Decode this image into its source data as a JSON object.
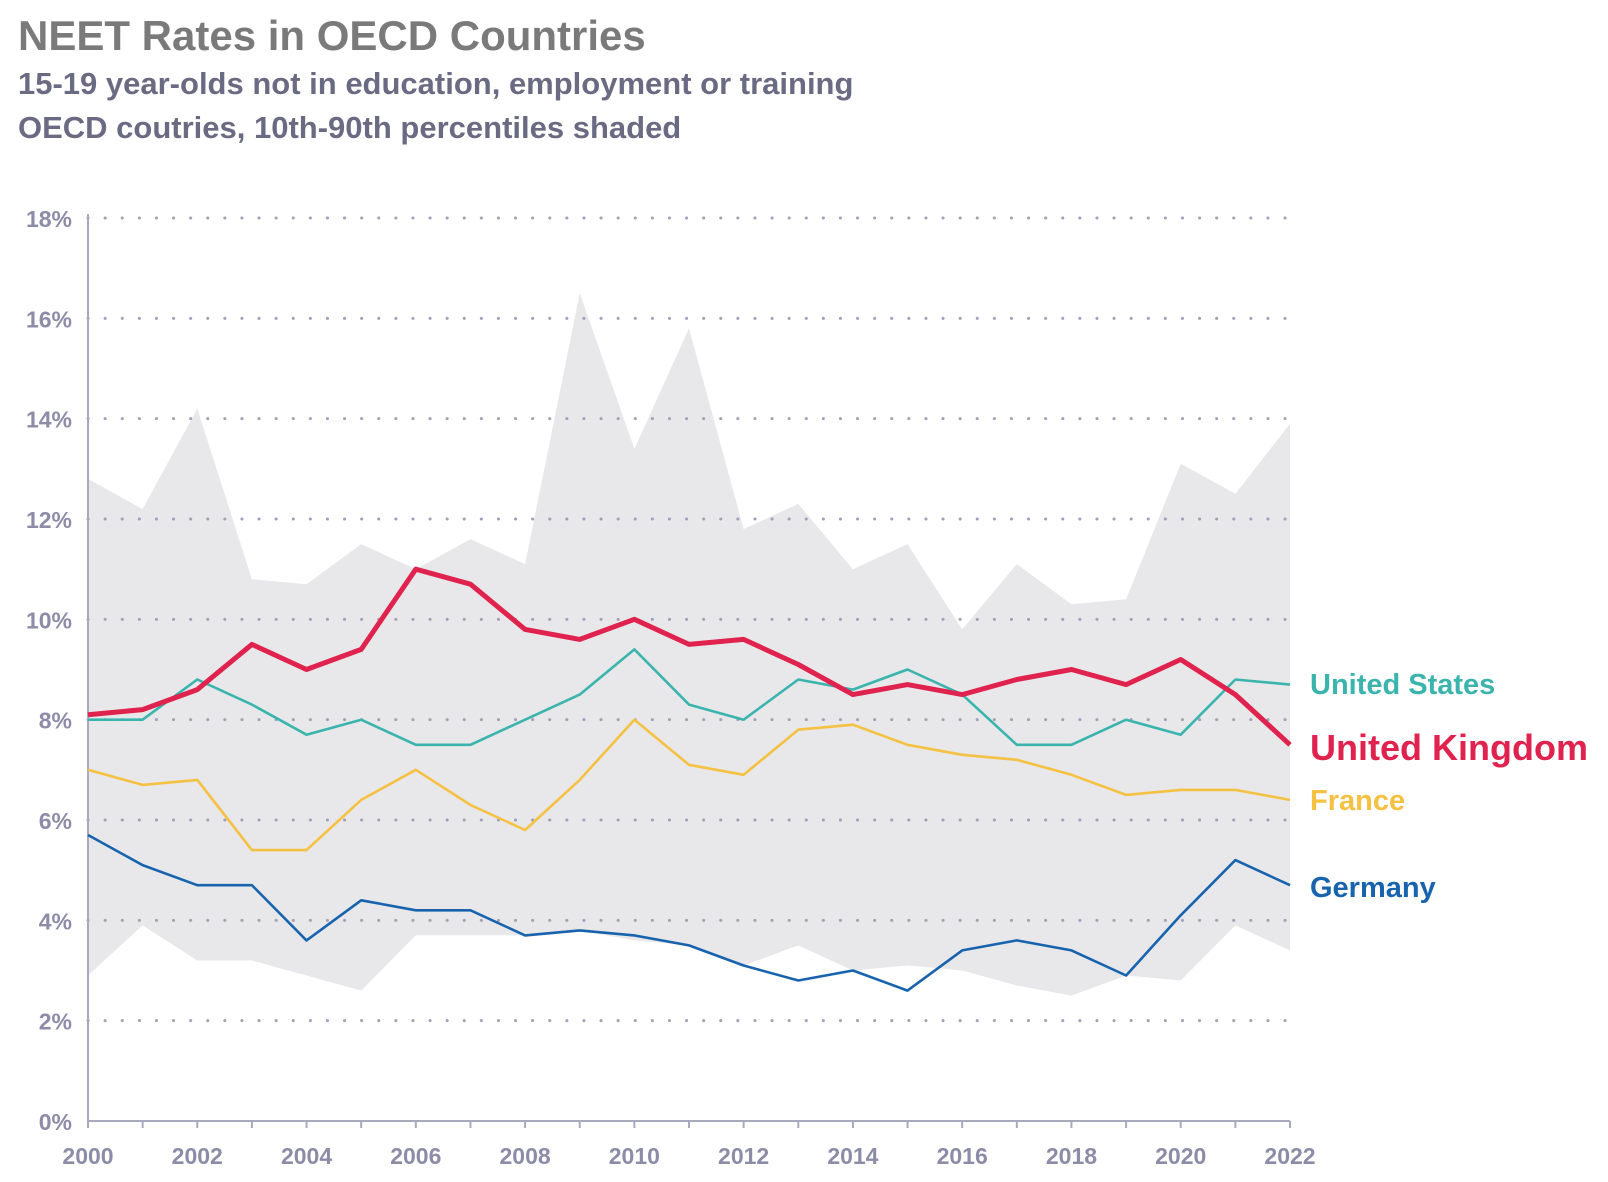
{
  "title": "NEET Rates in OECD Countries",
  "subtitle_line1": "15-19 year-olds not in education, employment or training",
  "subtitle_line2": "OECD coutries, 10th-90th percentiles shaded",
  "chart_data": {
    "type": "line",
    "x": [
      2000,
      2001,
      2002,
      2003,
      2004,
      2005,
      2006,
      2007,
      2008,
      2009,
      2010,
      2011,
      2012,
      2013,
      2014,
      2015,
      2016,
      2017,
      2018,
      2019,
      2020,
      2021,
      2022
    ],
    "x_tick_labels": [
      "2000",
      "2002",
      "2004",
      "2006",
      "2008",
      "2010",
      "2012",
      "2014",
      "2016",
      "2018",
      "2020",
      "2022"
    ],
    "y_tick_labels": [
      "0%",
      "2%",
      "4%",
      "6%",
      "8%",
      "10%",
      "12%",
      "14%",
      "16%",
      "18%"
    ],
    "ylim": [
      0,
      18
    ],
    "xlim": [
      2000,
      2022
    ],
    "grid": "horizontal dotted",
    "band": {
      "upper": [
        12.8,
        12.2,
        14.2,
        10.8,
        10.7,
        11.5,
        11.0,
        11.6,
        11.1,
        16.5,
        13.4,
        15.8,
        11.8,
        12.3,
        11.0,
        11.5,
        9.8,
        11.1,
        10.3,
        10.4,
        13.1,
        12.5,
        13.9
      ],
      "lower": [
        2.9,
        3.9,
        3.2,
        3.2,
        2.9,
        2.6,
        3.7,
        3.7,
        3.7,
        3.8,
        3.6,
        3.5,
        3.1,
        3.5,
        3.0,
        3.1,
        3.0,
        2.7,
        2.5,
        2.9,
        2.8,
        3.9,
        3.4
      ],
      "color": "#e8e8ea"
    },
    "series": [
      {
        "name": "United States",
        "color": "#3bb4ad",
        "values": [
          8.0,
          8.0,
          8.8,
          8.3,
          7.7,
          8.0,
          7.5,
          7.5,
          8.0,
          8.5,
          9.4,
          8.3,
          8.0,
          8.8,
          8.6,
          9.0,
          8.5,
          7.5,
          7.5,
          8.0,
          7.7,
          8.8,
          8.7
        ]
      },
      {
        "name": "United Kingdom",
        "color": "#e0234e",
        "values": [
          8.1,
          8.2,
          8.6,
          9.5,
          9.0,
          9.4,
          11.0,
          10.7,
          9.8,
          9.6,
          10.0,
          9.5,
          9.6,
          9.1,
          8.5,
          8.7,
          8.5,
          8.8,
          9.0,
          8.7,
          9.2,
          8.5,
          7.5
        ]
      },
      {
        "name": "France",
        "color": "#f5c142",
        "values": [
          7.0,
          6.7,
          6.8,
          5.4,
          5.4,
          6.4,
          7.0,
          6.3,
          5.8,
          6.8,
          8.0,
          7.1,
          6.9,
          7.8,
          7.9,
          7.5,
          7.3,
          7.2,
          6.9,
          6.5,
          6.6,
          6.6,
          6.4
        ]
      },
      {
        "name": "Germany",
        "color": "#1863ae",
        "values": [
          5.7,
          5.1,
          4.7,
          4.7,
          3.6,
          4.4,
          4.2,
          4.2,
          3.7,
          3.8,
          3.7,
          3.5,
          3.1,
          2.8,
          3.0,
          2.6,
          3.4,
          3.6,
          3.4,
          2.9,
          4.1,
          5.2,
          4.7
        ]
      }
    ]
  }
}
